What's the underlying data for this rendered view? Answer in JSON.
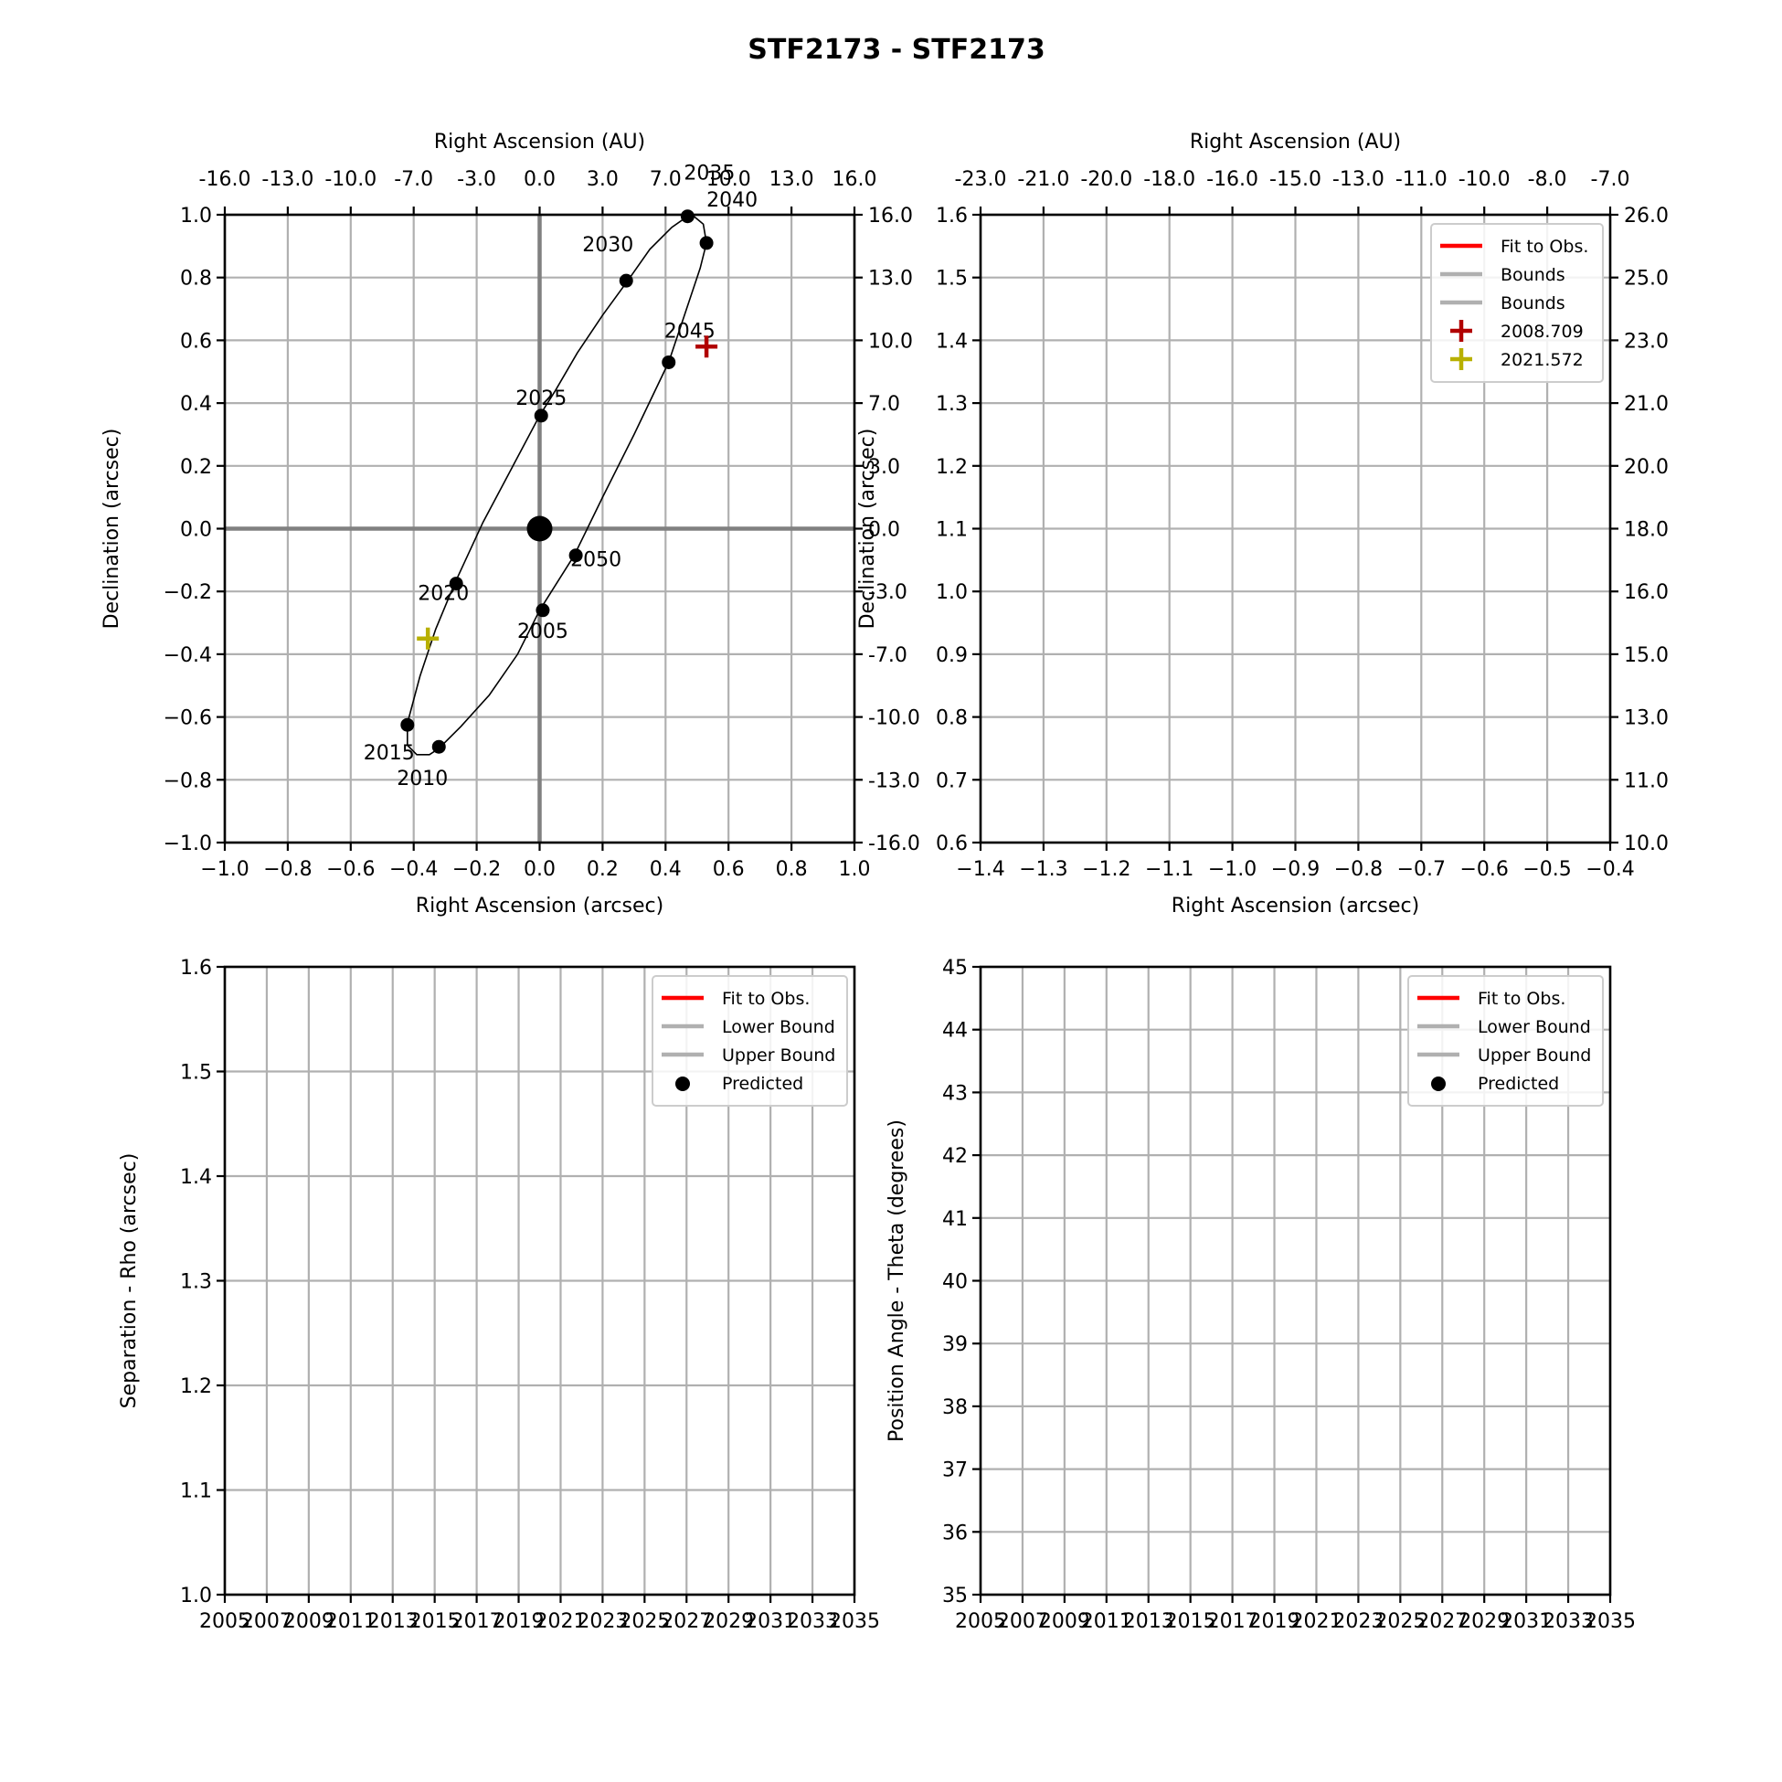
{
  "suptitle": "STF2173 - STF2173",
  "chart_data": [
    {
      "id": "orbit",
      "type": "scatter",
      "xlabel": "Right Ascension (arcsec)",
      "ylabel": "Declination (arcsec)",
      "top_xlabel": "Right Ascension (AU)",
      "xlim": [
        -1.0,
        1.0
      ],
      "ylim": [
        -1.0,
        1.0
      ],
      "xticks": [
        "−1.0",
        "−0.8",
        "−0.6",
        "−0.4",
        "−0.2",
        "0.0",
        "0.2",
        "0.4",
        "0.6",
        "0.8",
        "1.0"
      ],
      "yticks": [
        "−1.0",
        "−0.8",
        "−0.6",
        "−0.4",
        "−0.2",
        "0.0",
        "0.2",
        "0.4",
        "0.6",
        "0.8",
        "1.0"
      ],
      "top_xticks": [
        "-16.0",
        "-13.0",
        "-10.0",
        "-7.0",
        "-3.0",
        "0.0",
        "3.0",
        "7.0",
        "10.0",
        "13.0",
        "16.0"
      ],
      "right_yticks": [
        "-16.0",
        "-13.0",
        "-10.0",
        "-7.0",
        "-3.0",
        "0.0",
        "3.0",
        "7.0",
        "10.0",
        "13.0",
        "16.0"
      ],
      "grid": true,
      "orbit_path": [
        [
          0.0,
          -0.26
        ],
        [
          0.11,
          -0.085
        ],
        [
          0.2,
          0.1
        ],
        [
          0.3,
          0.3
        ],
        [
          0.41,
          0.53
        ],
        [
          0.46,
          0.68
        ],
        [
          0.51,
          0.83
        ],
        [
          0.53,
          0.91
        ],
        [
          0.52,
          0.97
        ],
        [
          0.49,
          0.995
        ],
        [
          0.47,
          0.995
        ],
        [
          0.42,
          0.96
        ],
        [
          0.35,
          0.89
        ],
        [
          0.28,
          0.79
        ],
        [
          0.2,
          0.68
        ],
        [
          0.12,
          0.56
        ],
        [
          0.05,
          0.44
        ],
        [
          0.0,
          0.36
        ],
        [
          -0.09,
          0.19
        ],
        [
          -0.18,
          0.02
        ],
        [
          -0.27,
          -0.175
        ],
        [
          -0.33,
          -0.32
        ],
        [
          -0.38,
          -0.47
        ],
        [
          -0.42,
          -0.62
        ],
        [
          -0.42,
          -0.69
        ],
        [
          -0.39,
          -0.72
        ],
        [
          -0.35,
          -0.72
        ],
        [
          -0.32,
          -0.7
        ],
        [
          -0.25,
          -0.63
        ],
        [
          -0.16,
          -0.53
        ],
        [
          -0.07,
          -0.4
        ],
        [
          0.0,
          -0.26
        ]
      ],
      "epochs": [
        {
          "label": "2005",
          "x": 0.01,
          "y": -0.26
        },
        {
          "label": "2010",
          "x": -0.32,
          "y": -0.695
        },
        {
          "label": "2015",
          "x": -0.42,
          "y": -0.625
        },
        {
          "label": "2020",
          "x": -0.265,
          "y": -0.175
        },
        {
          "label": "2025",
          "x": 0.005,
          "y": 0.36
        },
        {
          "label": "2030",
          "x": 0.275,
          "y": 0.79
        },
        {
          "label": "2035",
          "x": 0.47,
          "y": 0.995
        },
        {
          "label": "2040",
          "x": 0.53,
          "y": 0.91
        },
        {
          "label": "2045",
          "x": 0.41,
          "y": 0.53
        },
        {
          "label": "2050",
          "x": 0.115,
          "y": -0.085
        }
      ],
      "primary": {
        "x": 0.0,
        "y": 0.0
      },
      "observations": [
        {
          "label": "2008.709",
          "x": 0.53,
          "y": 0.58,
          "color": "#b10000"
        },
        {
          "label": "2021.572",
          "x": -0.355,
          "y": -0.35,
          "color": "#b8b000"
        }
      ]
    },
    {
      "id": "orbit-zoom",
      "type": "scatter",
      "xlabel": "Right Ascension (arcsec)",
      "ylabel": "Declination (arcsec)",
      "top_xlabel": "Right Ascension (AU)",
      "xlim": [
        -1.4,
        -0.4
      ],
      "ylim": [
        0.6,
        1.6
      ],
      "xticks": [
        "−1.4",
        "−1.3",
        "−1.2",
        "−1.1",
        "−1.0",
        "−0.9",
        "−0.8",
        "−0.7",
        "−0.6",
        "−0.5",
        "−0.4"
      ],
      "yticks": [
        "0.6",
        "0.7",
        "0.8",
        "0.9",
        "1.0",
        "1.1",
        "1.2",
        "1.3",
        "1.4",
        "1.5",
        "1.6"
      ],
      "top_xticks": [
        "-23.0",
        "-21.0",
        "-20.0",
        "-18.0",
        "-16.0",
        "-15.0",
        "-13.0",
        "-11.0",
        "-10.0",
        "-8.0",
        "-7.0"
      ],
      "right_yticks": [
        "10.0",
        "11.0",
        "13.0",
        "15.0",
        "16.0",
        "18.0",
        "20.0",
        "21.0",
        "23.0",
        "25.0",
        "26.0"
      ],
      "grid": true,
      "legend": [
        {
          "label": "Fit to Obs.",
          "kind": "line",
          "color": "#ff0000"
        },
        {
          "label": "Bounds",
          "kind": "line",
          "color": "#b0b0b0"
        },
        {
          "label": "Bounds",
          "kind": "line",
          "color": "#b0b0b0"
        },
        {
          "label": "2008.709",
          "kind": "plus",
          "color": "#b10000"
        },
        {
          "label": "2021.572",
          "kind": "plus",
          "color": "#b8b000"
        }
      ],
      "legend_position": "top-right"
    },
    {
      "id": "rho",
      "type": "line",
      "xlabel": "",
      "ylabel": "Separation - Rho (arcsec)",
      "xlim": [
        2005,
        2035
      ],
      "ylim": [
        1.0,
        1.6
      ],
      "xticks": [
        "2005",
        "2007",
        "2009",
        "2011",
        "2013",
        "2015",
        "2017",
        "2019",
        "2021",
        "2023",
        "2025",
        "2027",
        "2029",
        "2031",
        "2033",
        "2035"
      ],
      "yticks": [
        "1.0",
        "1.1",
        "1.2",
        "1.3",
        "1.4",
        "1.5",
        "1.6"
      ],
      "grid": true,
      "legend": [
        {
          "label": "Fit to Obs.",
          "kind": "line",
          "color": "#ff0000"
        },
        {
          "label": "Lower Bound",
          "kind": "line",
          "color": "#b0b0b0"
        },
        {
          "label": "Upper Bound",
          "kind": "line",
          "color": "#b0b0b0"
        },
        {
          "label": "Predicted",
          "kind": "dot",
          "color": "#000000"
        }
      ],
      "legend_position": "top-right"
    },
    {
      "id": "theta",
      "type": "line",
      "xlabel": "",
      "ylabel": "Position Angle - Theta (degrees)",
      "xlim": [
        2005,
        2035
      ],
      "ylim": [
        35,
        45
      ],
      "xticks": [
        "2005",
        "2007",
        "2009",
        "2011",
        "2013",
        "2015",
        "2017",
        "2019",
        "2021",
        "2023",
        "2025",
        "2027",
        "2029",
        "2031",
        "2033",
        "2035"
      ],
      "yticks": [
        "35",
        "36",
        "37",
        "38",
        "39",
        "40",
        "41",
        "42",
        "43",
        "44",
        "45"
      ],
      "grid": true,
      "legend": [
        {
          "label": "Fit to Obs.",
          "kind": "line",
          "color": "#ff0000"
        },
        {
          "label": "Lower Bound",
          "kind": "line",
          "color": "#b0b0b0"
        },
        {
          "label": "Upper Bound",
          "kind": "line",
          "color": "#b0b0b0"
        },
        {
          "label": "Predicted",
          "kind": "dot",
          "color": "#000000"
        }
      ],
      "legend_position": "top-right"
    }
  ]
}
